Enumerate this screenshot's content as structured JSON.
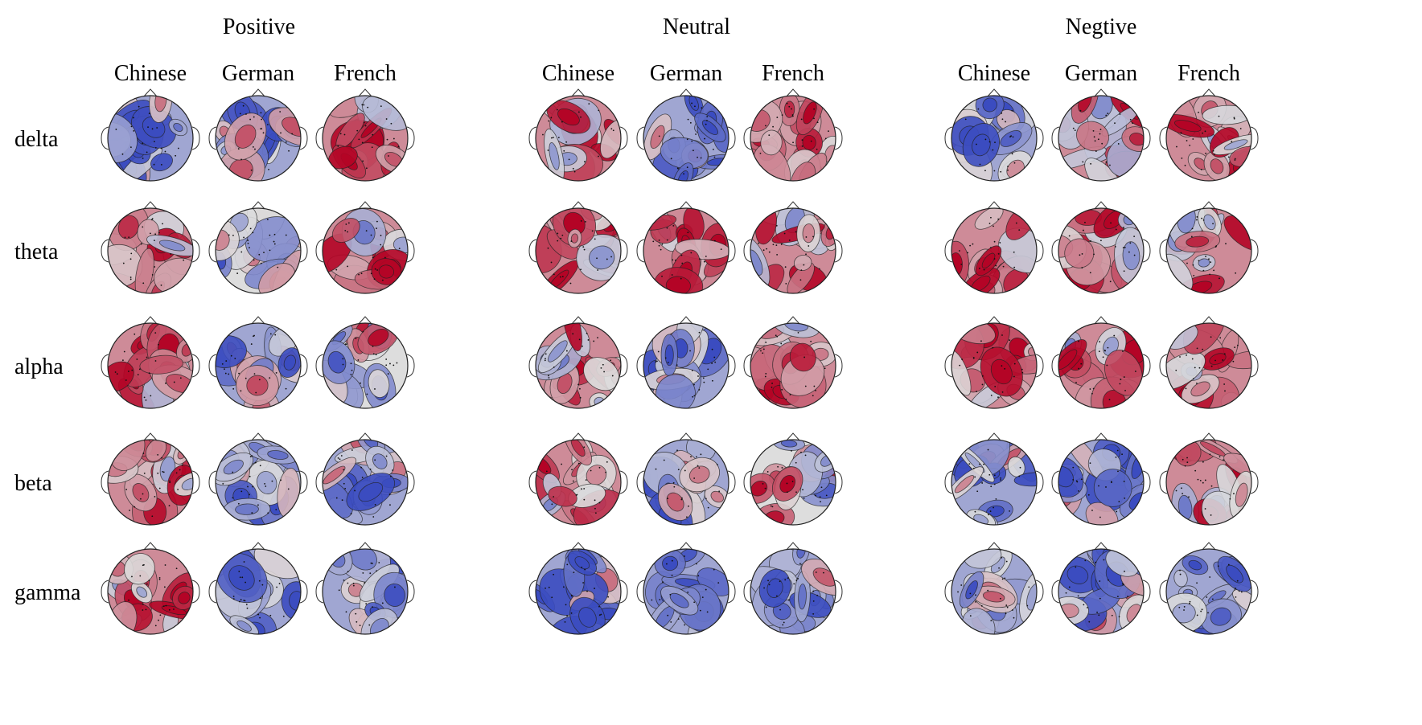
{
  "conditions": [
    {
      "title": "Positive",
      "columns": [
        "Chinese",
        "German",
        "French"
      ]
    },
    {
      "title": "Neutral",
      "columns": [
        "Chinese",
        "German",
        "French"
      ]
    },
    {
      "title": "Negtive",
      "columns": [
        "Chinese",
        "German",
        "French"
      ]
    }
  ],
  "bands": [
    "delta",
    "theta",
    "alpha",
    "beta",
    "gamma"
  ],
  "colormap": {
    "low": "#3b4cc0",
    "mid": "#dddddd",
    "high": "#b40426"
  },
  "topomap_tendency": [
    [
      "cool",
      "cool",
      "warm",
      "warm",
      "cool",
      "warm",
      "cool",
      "warm",
      "warm"
    ],
    [
      "warm",
      "neutral",
      "warm",
      "warm",
      "warm",
      "warm",
      "warm",
      "warm",
      "warm"
    ],
    [
      "warm",
      "cool",
      "neutral",
      "warm",
      "cool",
      "warm",
      "warm",
      "warm",
      "warm"
    ],
    [
      "warm",
      "cool",
      "cool",
      "warm",
      "cool",
      "neutral",
      "cool",
      "cool",
      "warm"
    ],
    [
      "warm",
      "cool",
      "cool",
      "cool",
      "cool",
      "cool",
      "cool",
      "cool",
      "cool"
    ]
  ]
}
